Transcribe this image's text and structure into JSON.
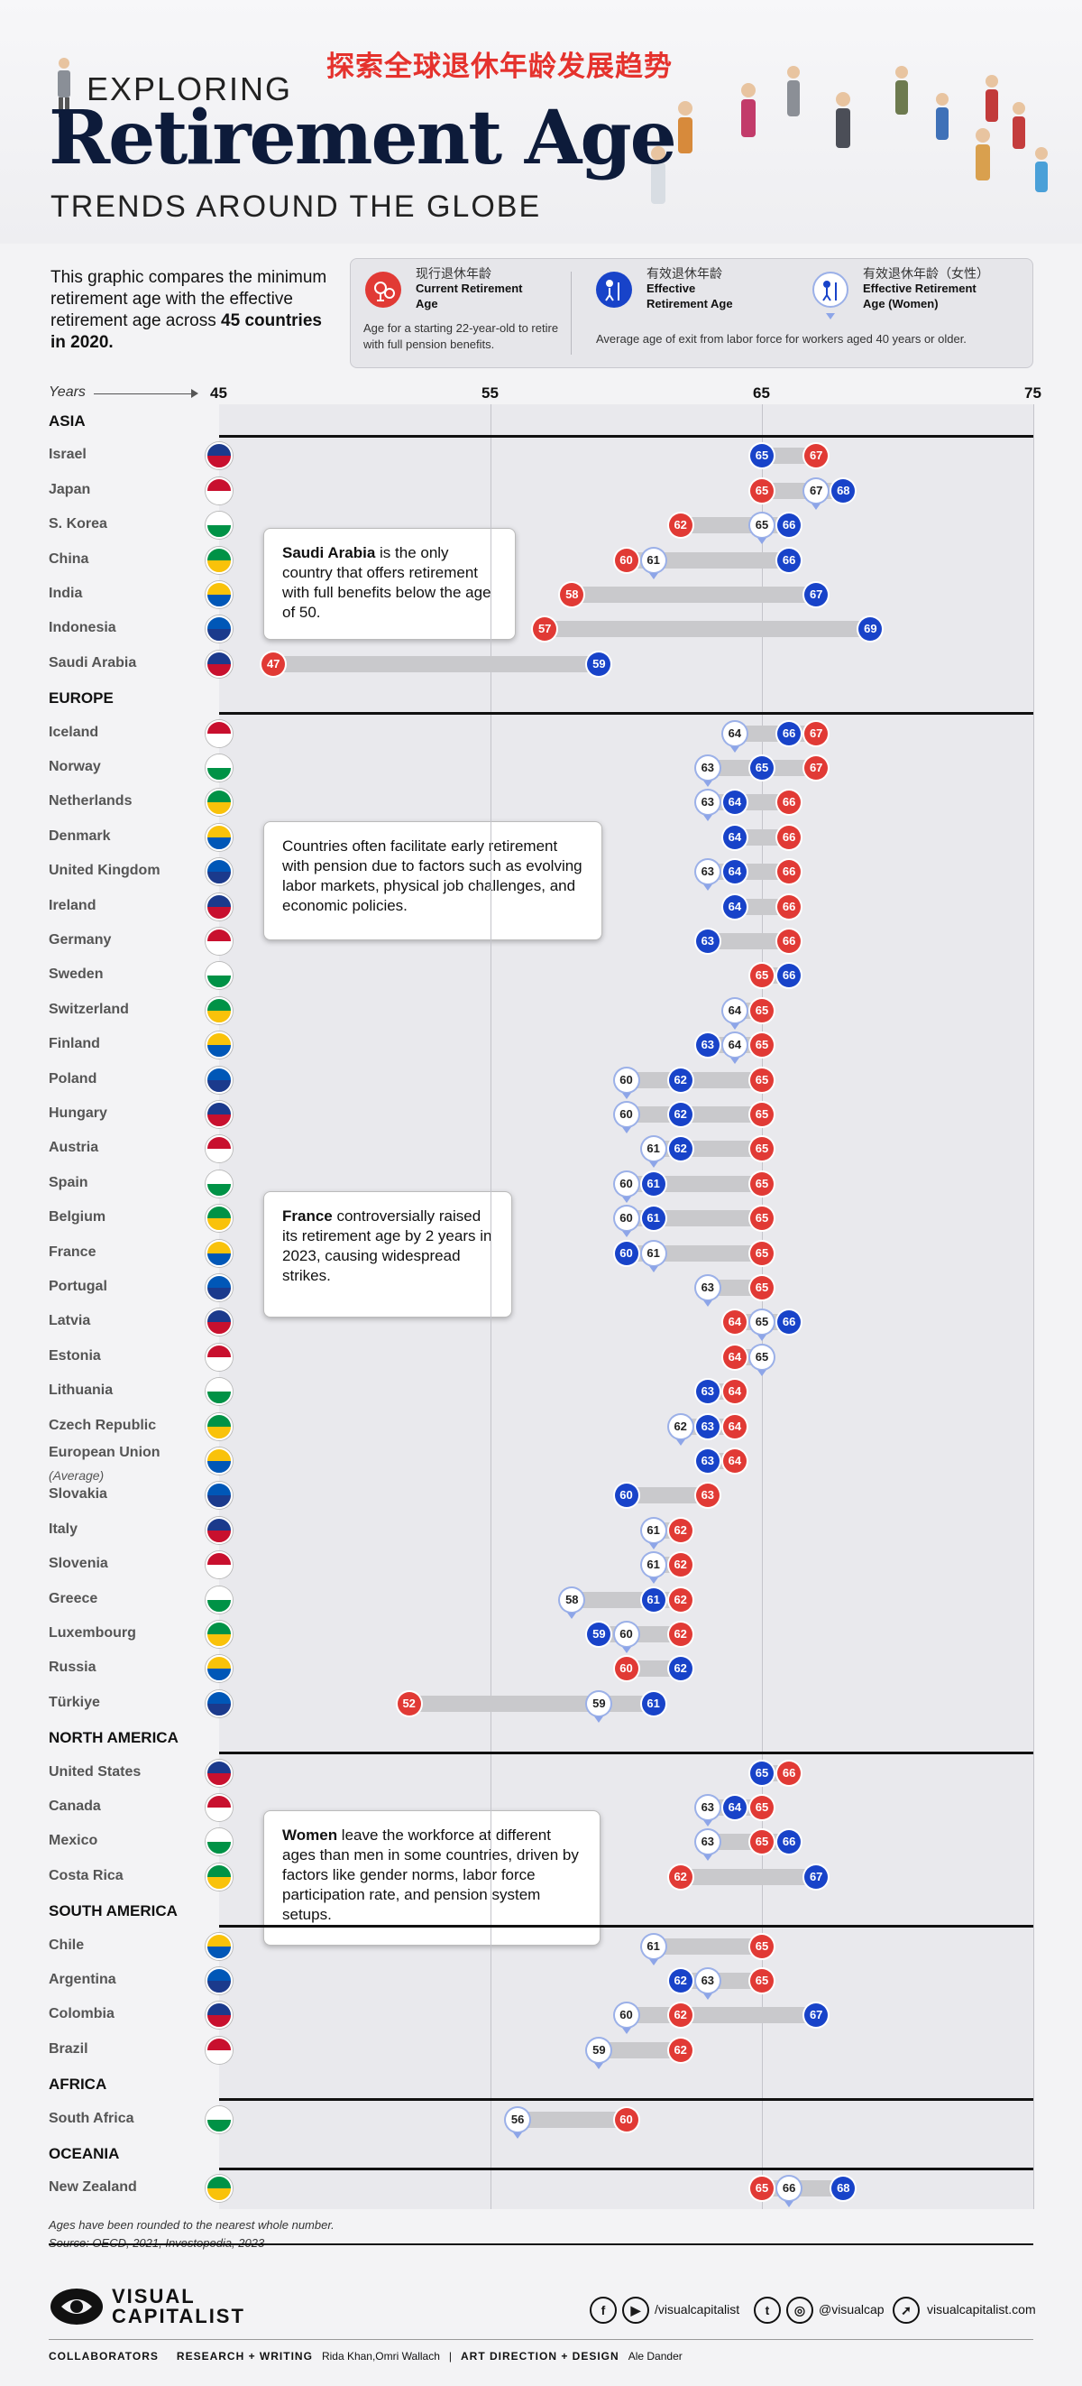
{
  "header": {
    "title_cn": "探索全球退休年龄发展趋势",
    "exploring": "EXPLORING",
    "title": "Retirement Age",
    "subtitle": "TRENDS AROUND THE GLOBE"
  },
  "intro": {
    "before": "This graphic compares the minimum retirement age with the effective retirement age across ",
    "bold": "45 countries in 2020."
  },
  "legend": {
    "current_cn": "现行退休年龄",
    "current_en": "Current Retirement Age",
    "current_desc": "Age for a starting 22-year-old to retire with full pension benefits.",
    "effective_cn": "有效退休年龄",
    "effective_en": "Effective Retirement Age",
    "women_cn": "有效退休年龄（女性）",
    "women_en": "Effective Retirement Age (Women)",
    "effective_desc": "Average age of exit from labor force for workers aged 40 years or older."
  },
  "colors": {
    "current": "#e13a35",
    "effective": "#1843c9",
    "women": "#ffffff",
    "title": "#0d1b3a",
    "cn_title": "#e5322d"
  },
  "callouts": {
    "saudi_bold": "Saudi Arabia",
    "saudi_rest": " is the only country that offers retirement with full benefits below the age of 50.",
    "europe": "Countries often facilitate early retirement with pension due to factors such as evolving labor markets, physical job challenges, and economic policies.",
    "france_bold": "France",
    "france_rest": " controversially raised its retirement age by 2 years in 2023, causing widespread strikes.",
    "women_bold": "Women",
    "women_rest": " leave the workforce at different ages than men in some countries, driven by factors like gender norms, labor force participation rate, and pension system setups."
  },
  "chart_data": {
    "type": "dot-range",
    "title": "Retirement Age Trends Around the Globe",
    "xlabel": "Years",
    "xlim": [
      45,
      75
    ],
    "xticks": [
      45,
      55,
      65,
      75
    ],
    "regions": [
      {
        "name": "ASIA",
        "countries": [
          {
            "name": "Israel",
            "current": 67,
            "effective": 65,
            "women": null
          },
          {
            "name": "Japan",
            "current": 65,
            "effective": 68,
            "women": 67
          },
          {
            "name": "S. Korea",
            "current": 62,
            "effective": 66,
            "women": 65
          },
          {
            "name": "China",
            "current": 60,
            "effective": 66,
            "women": 61
          },
          {
            "name": "India",
            "current": 58,
            "effective": 67,
            "women": null
          },
          {
            "name": "Indonesia",
            "current": 57,
            "effective": 69,
            "women": null
          },
          {
            "name": "Saudi Arabia",
            "current": 47,
            "effective": 59,
            "women": null
          }
        ]
      },
      {
        "name": "EUROPE",
        "countries": [
          {
            "name": "Iceland",
            "current": 67,
            "effective": 66,
            "women": 64
          },
          {
            "name": "Norway",
            "current": 67,
            "effective": 65,
            "women": 63
          },
          {
            "name": "Netherlands",
            "current": 66,
            "effective": 64,
            "women": 63
          },
          {
            "name": "Denmark",
            "current": 66,
            "effective": 64,
            "women": null
          },
          {
            "name": "United Kingdom",
            "current": 66,
            "effective": 64,
            "women": 63
          },
          {
            "name": "Ireland",
            "current": 66,
            "effective": 64,
            "women": null
          },
          {
            "name": "Germany",
            "current": 66,
            "effective": 63,
            "women": null
          },
          {
            "name": "Sweden",
            "current": 65,
            "effective": 66,
            "women": null
          },
          {
            "name": "Switzerland",
            "current": 65,
            "effective": null,
            "women": 64
          },
          {
            "name": "Finland",
            "current": 65,
            "effective": 63,
            "women": 64
          },
          {
            "name": "Poland",
            "current": 65,
            "effective": 62,
            "women": 60
          },
          {
            "name": "Hungary",
            "current": 65,
            "effective": 62,
            "women": 60
          },
          {
            "name": "Austria",
            "current": 65,
            "effective": 62,
            "women": 61
          },
          {
            "name": "Spain",
            "current": 65,
            "effective": 61,
            "women": 60
          },
          {
            "name": "Belgium",
            "current": 65,
            "effective": 61,
            "women": 60
          },
          {
            "name": "France",
            "current": 65,
            "effective": 60,
            "women": 61
          },
          {
            "name": "Portugal",
            "current": 65,
            "effective": null,
            "women": 63
          },
          {
            "name": "Latvia",
            "current": 64,
            "effective": 66,
            "women": 65
          },
          {
            "name": "Estonia",
            "current": 64,
            "effective": null,
            "women": 65
          },
          {
            "name": "Lithuania",
            "current": 64,
            "effective": 63,
            "women": null
          },
          {
            "name": "Czech Republic",
            "current": 64,
            "effective": 63,
            "women": 62
          },
          {
            "name": "European Union",
            "sub": "(Average)",
            "current": 64,
            "effective": 63,
            "women": null
          },
          {
            "name": "Slovakia",
            "current": 63,
            "effective": 60,
            "women": null
          },
          {
            "name": "Italy",
            "current": 62,
            "effective": null,
            "women": 61
          },
          {
            "name": "Slovenia",
            "current": 62,
            "effective": null,
            "women": 61
          },
          {
            "name": "Greece",
            "current": 62,
            "effective": 61,
            "women": 58
          },
          {
            "name": "Luxembourg",
            "current": 62,
            "effective": 59,
            "women": 60
          },
          {
            "name": "Russia",
            "current": 60,
            "effective": 62,
            "women": null
          },
          {
            "name": "Türkiye",
            "current": 52,
            "effective": 61,
            "women": 59
          }
        ]
      },
      {
        "name": "NORTH AMERICA",
        "countries": [
          {
            "name": "United States",
            "current": 66,
            "effective": 65,
            "women": null
          },
          {
            "name": "Canada",
            "current": 65,
            "effective": 64,
            "women": 63
          },
          {
            "name": "Mexico",
            "current": 65,
            "effective": 66,
            "women": 63
          },
          {
            "name": "Costa Rica",
            "current": 62,
            "effective": 67,
            "women": null
          }
        ]
      },
      {
        "name": "SOUTH AMERICA",
        "countries": [
          {
            "name": "Chile",
            "current": 65,
            "effective": null,
            "women": 61
          },
          {
            "name": "Argentina",
            "current": 65,
            "effective": 62,
            "women": 63
          },
          {
            "name": "Colombia",
            "current": 62,
            "effective": 67,
            "women": 60
          },
          {
            "name": "Brazil",
            "current": 62,
            "effective": null,
            "women": 59
          }
        ]
      },
      {
        "name": "AFRICA",
        "countries": [
          {
            "name": "South Africa",
            "current": 60,
            "effective": null,
            "women": 56
          }
        ]
      },
      {
        "name": "OCEANIA",
        "countries": [
          {
            "name": "New Zealand",
            "current": 65,
            "effective": 68,
            "women": 66
          }
        ]
      }
    ]
  },
  "footnotes": {
    "rounding": "Ages have been rounded to the nearest whole number.",
    "source": "Source: OECD, 2021, Investopedia, 2023"
  },
  "footer": {
    "brand_line1": "VISUAL",
    "brand_line2": "CAPITALIST",
    "social1": "/visualcapitalist",
    "social2": "@visualcap",
    "website": "visualcapitalist.com",
    "collab_label": "COLLABORATORS",
    "research_label": "RESEARCH + WRITING",
    "research_names": "Rida Khan,Omri Wallach",
    "art_label": "ART DIRECTION + DESIGN",
    "art_names": "Ale Dander"
  }
}
